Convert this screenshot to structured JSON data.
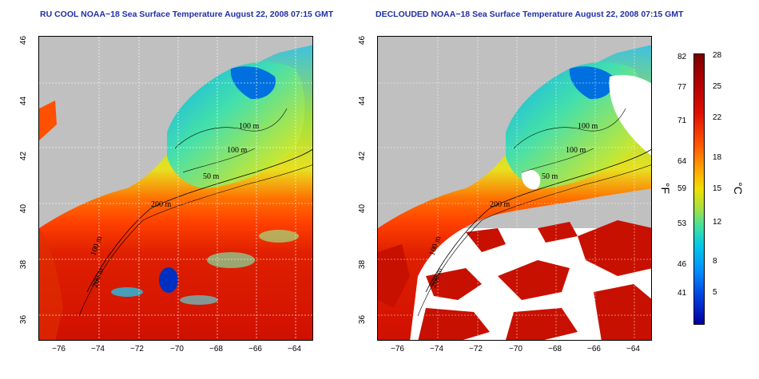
{
  "panels": [
    {
      "title": "RU COOL NOAA−18 Sea Surface Temperature August 22, 2008 07:15 GMT",
      "mode": "full"
    },
    {
      "title": "DECLOUDED NOAA−18 Sea Surface Temperature August 22, 2008 07:15 GMT",
      "mode": "declouded"
    }
  ],
  "axes": {
    "lon_ticks": [
      "−76",
      "−74",
      "−72",
      "−70",
      "−68",
      "−66",
      "−64"
    ],
    "lat_ticks": [
      "46",
      "44",
      "42",
      "40",
      "38",
      "36"
    ]
  },
  "contour_labels": [
    "100 m",
    "100 m",
    "50 m",
    "200 m",
    "100 m",
    "200 m"
  ],
  "colorbar": {
    "fahrenheit_ticks": [
      "82",
      "77",
      "71",
      "64",
      "59",
      "53",
      "46",
      "41"
    ],
    "celsius_ticks": [
      "28",
      "25",
      "22",
      "18",
      "15",
      "12",
      "8",
      "5"
    ],
    "fahrenheit_unit": "°F",
    "celsius_unit": "°C"
  },
  "colors": {
    "land": "#c0c0c0",
    "clouds_removed": "#ffffff",
    "warm": "#d01000",
    "cold": "#00a0ff"
  }
}
